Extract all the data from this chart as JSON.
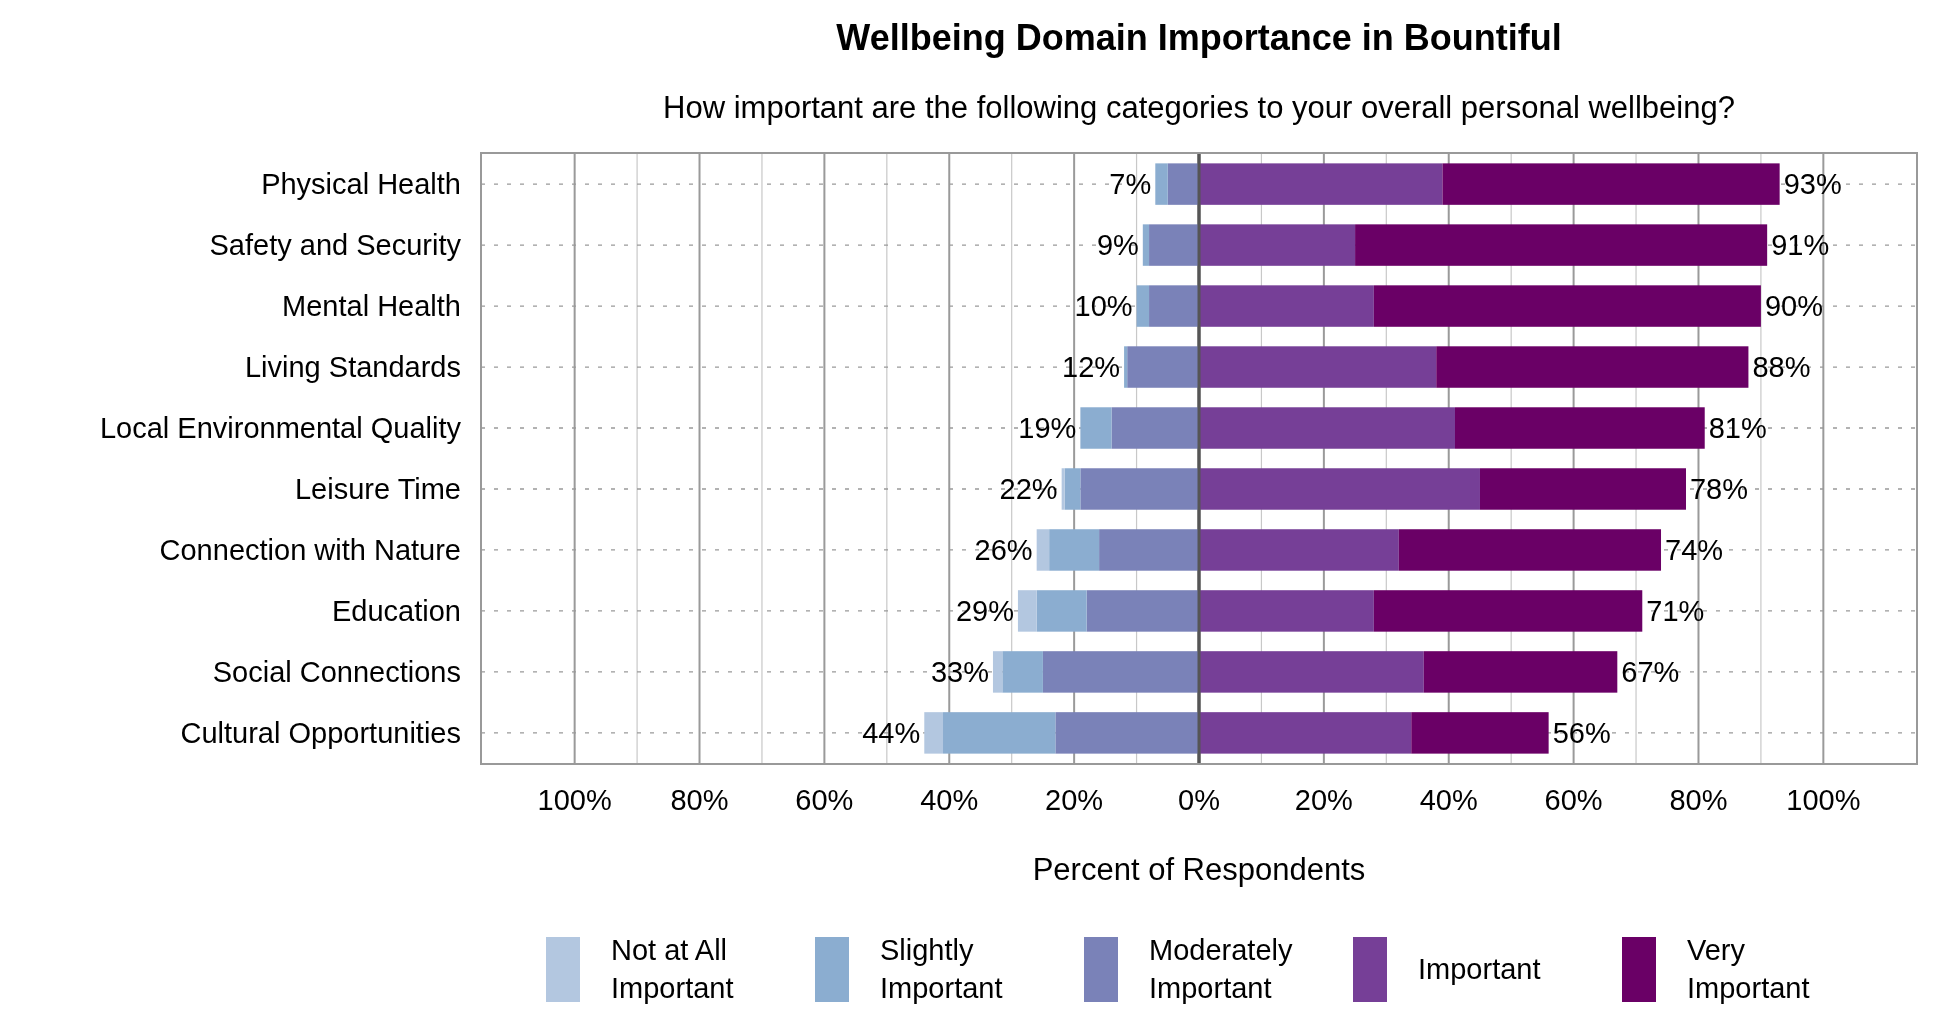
{
  "chart_data": {
    "type": "bar",
    "orientation": "horizontal",
    "stacked": true,
    "title": "Wellbeing Domain Importance in Bountiful",
    "subtitle": "How important are the following categories to your overall personal wellbeing?",
    "xlabel": "Percent of Respondents",
    "categories": [
      "Physical Health",
      "Safety and Security",
      "Mental Health",
      "Living Standards",
      "Local Environmental Quality",
      "Leisure Time",
      "Connection with Nature",
      "Education",
      "Social Connections",
      "Cultural Opportunities"
    ],
    "series": [
      {
        "name": "Not at All Important",
        "color": "#b3c7e0",
        "values": [
          0,
          0,
          0,
          0,
          0,
          -0.5,
          -2,
          -3,
          -1.5,
          -3
        ]
      },
      {
        "name": "Slightly Important",
        "color": "#8badd0",
        "values": [
          -2,
          -1,
          -2,
          -0.5,
          -5,
          -2.5,
          -8,
          -8,
          -6.5,
          -18
        ]
      },
      {
        "name": "Moderately Important",
        "color": "#7a82b8",
        "values": [
          -5,
          -8,
          -8,
          -11.5,
          -14,
          -19,
          -16,
          -18,
          -25,
          -23
        ]
      },
      {
        "name": "Important",
        "color": "#763f97",
        "values": [
          39,
          25,
          28,
          38,
          41,
          45,
          32,
          28,
          36,
          34
        ]
      },
      {
        "name": "Very Important",
        "color": "#6a0066",
        "values": [
          54,
          66,
          62,
          50,
          40,
          33,
          42,
          43,
          31,
          22
        ]
      }
    ],
    "annotations": [
      {
        "text": "7%",
        "x": -7,
        "y": "Physical Health"
      },
      {
        "text": "9%",
        "x": -9,
        "y": "Safety and Security"
      },
      {
        "text": "10%",
        "x": -10,
        "y": "Mental Health"
      },
      {
        "text": "12%",
        "x": -12,
        "y": "Living Standards"
      },
      {
        "text": "19%",
        "x": -19,
        "y": "Local Environmental Quality"
      },
      {
        "text": "22%",
        "x": -22,
        "y": "Leisure Time"
      },
      {
        "text": "26%",
        "x": -26,
        "y": "Connection with Nature"
      },
      {
        "text": "29%",
        "x": -29,
        "y": "Education"
      },
      {
        "text": "33%",
        "x": -33,
        "y": "Social Connections"
      },
      {
        "text": "44%",
        "x": -44,
        "y": "Cultural Opportunities"
      },
      {
        "text": "93%",
        "x": 93,
        "y": "Physical Health"
      },
      {
        "text": "91%",
        "x": 91,
        "y": "Safety and Security"
      },
      {
        "text": "90%",
        "x": 90,
        "y": "Mental Health"
      },
      {
        "text": "88%",
        "x": 88,
        "y": "Living Standards"
      },
      {
        "text": "81%",
        "x": 81,
        "y": "Local Environmental Quality"
      },
      {
        "text": "78%",
        "x": 78,
        "y": "Leisure Time"
      },
      {
        "text": "74%",
        "x": 74,
        "y": "Connection with Nature"
      },
      {
        "text": "71%",
        "x": 71,
        "y": "Education"
      },
      {
        "text": "67%",
        "x": 67,
        "y": "Social Connections"
      },
      {
        "text": "56%",
        "x": 56,
        "y": "Cultural Opportunities"
      }
    ],
    "xlim": [
      -115,
      115
    ],
    "xticks": [
      {
        "value": -100,
        "label": "100%"
      },
      {
        "value": -90,
        "label": null
      },
      {
        "value": -80,
        "label": "80%"
      },
      {
        "value": -70,
        "label": null
      },
      {
        "value": -60,
        "label": "60%"
      },
      {
        "value": -50,
        "label": null
      },
      {
        "value": -40,
        "label": "40%"
      },
      {
        "value": -30,
        "label": null
      },
      {
        "value": -20,
        "label": "20%"
      },
      {
        "value": -10,
        "label": null
      },
      {
        "value": 0,
        "label": "0%"
      },
      {
        "value": 10,
        "label": null
      },
      {
        "value": 20,
        "label": "20%"
      },
      {
        "value": 30,
        "label": null
      },
      {
        "value": 40,
        "label": "40%"
      },
      {
        "value": 50,
        "label": null
      },
      {
        "value": 60,
        "label": "60%"
      },
      {
        "value": 70,
        "label": null
      },
      {
        "value": 80,
        "label": "80%"
      },
      {
        "value": 90,
        "label": null
      },
      {
        "value": 100,
        "label": "100%"
      }
    ],
    "grid": true,
    "legend": "bottom"
  }
}
